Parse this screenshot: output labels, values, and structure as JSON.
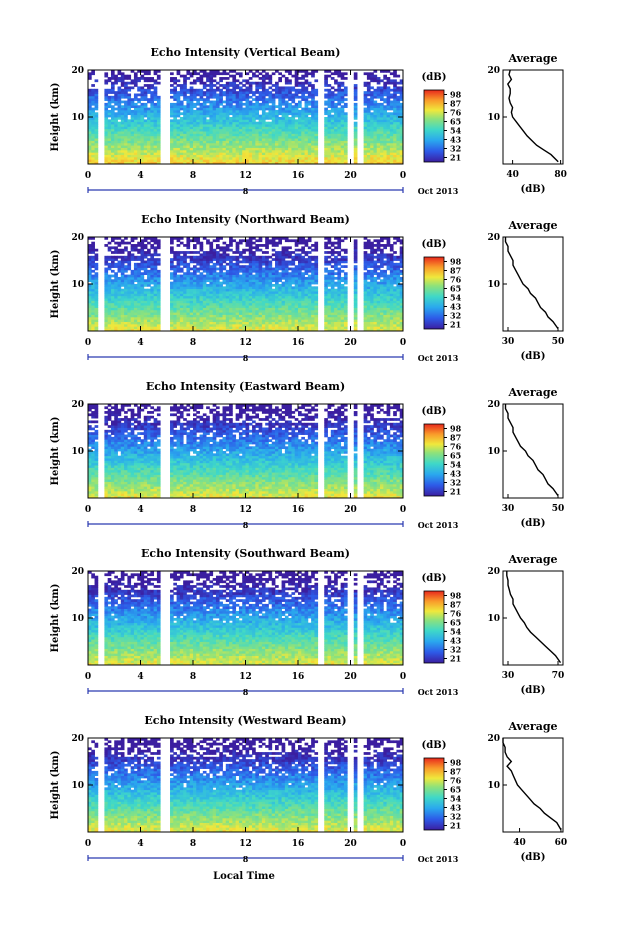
{
  "figure": {
    "xlabel": "Local Time",
    "colorbar_unit": "(dB)",
    "date_label": "Oct 2013",
    "profile_title": "Average",
    "profile_xlabel": "(dB)",
    "colorbar_ticks": [
      "98",
      "87",
      "76",
      "65",
      "54",
      "43",
      "32",
      "21"
    ]
  },
  "chart_data": [
    {
      "type": "heatmap",
      "title": "Echo Intensity (Vertical Beam)",
      "ylabel": "Height (km)",
      "xticks": [
        "0",
        "4",
        "8",
        "12",
        "16",
        "20",
        "0"
      ],
      "yticks": [
        "10",
        "20"
      ],
      "ylim": [
        0,
        20
      ],
      "xlim": [
        0,
        24
      ],
      "mid_date": "8",
      "colorbar_ticks": [
        "98",
        "87",
        "76",
        "65",
        "54",
        "43",
        "32",
        "21"
      ],
      "data_gaps_hours": [
        [
          0.7,
          1.3
        ],
        [
          5.6,
          6.2
        ],
        [
          17.6,
          18.0
        ],
        [
          19.8,
          20.2
        ],
        [
          20.5,
          21.0
        ]
      ],
      "profile": {
        "title": "Average",
        "xlabel": "(dB)",
        "xticks": [
          "40",
          "80"
        ],
        "xlim": [
          32,
          82
        ],
        "yticks": [
          "10",
          "20"
        ],
        "height": [
          0.5,
          2,
          3,
          4,
          5,
          6,
          7,
          8,
          9,
          10,
          11,
          12,
          13,
          14,
          15,
          16,
          17,
          18,
          19,
          20
        ],
        "value": [
          78,
          72,
          66,
          60,
          56,
          52,
          49,
          46,
          43,
          40,
          39,
          40,
          38,
          37,
          38,
          38,
          36,
          39,
          37,
          38
        ]
      }
    },
    {
      "type": "heatmap",
      "title": "Echo Intensity (Northward Beam)",
      "ylabel": "Height (km)",
      "xticks": [
        "0",
        "4",
        "8",
        "12",
        "16",
        "20",
        "0"
      ],
      "yticks": [
        "10",
        "20"
      ],
      "ylim": [
        0,
        20
      ],
      "xlim": [
        0,
        24
      ],
      "mid_date": "8",
      "colorbar_ticks": [
        "98",
        "87",
        "76",
        "65",
        "54",
        "43",
        "32",
        "21"
      ],
      "data_gaps_hours": [
        [
          0.7,
          1.3
        ],
        [
          5.6,
          6.2
        ],
        [
          17.6,
          18.0
        ],
        [
          19.8,
          20.2
        ],
        [
          20.5,
          21.0
        ]
      ],
      "profile": {
        "title": "Average",
        "xlabel": "(dB)",
        "xticks": [
          "30",
          "50"
        ],
        "xlim": [
          28,
          52
        ],
        "yticks": [
          "10",
          "20"
        ],
        "height": [
          0.5,
          2,
          3,
          4,
          5,
          6,
          7,
          8,
          9,
          10,
          11,
          12,
          13,
          14,
          15,
          16,
          17,
          18,
          19,
          20
        ],
        "value": [
          50,
          48,
          46,
          45,
          43,
          42,
          41,
          39,
          38,
          36,
          35,
          34,
          33,
          32,
          32,
          31,
          30,
          30,
          29,
          29
        ]
      }
    },
    {
      "type": "heatmap",
      "title": "Echo Intensity (Eastward Beam)",
      "ylabel": "Height (km)",
      "xticks": [
        "0",
        "4",
        "8",
        "12",
        "16",
        "20",
        "0"
      ],
      "yticks": [
        "10",
        "20"
      ],
      "ylim": [
        0,
        20
      ],
      "xlim": [
        0,
        24
      ],
      "mid_date": "8",
      "colorbar_ticks": [
        "98",
        "87",
        "76",
        "65",
        "54",
        "43",
        "32",
        "21"
      ],
      "data_gaps_hours": [
        [
          0.7,
          1.3
        ],
        [
          5.6,
          6.2
        ],
        [
          17.6,
          18.0
        ],
        [
          19.8,
          20.2
        ],
        [
          20.5,
          21.0
        ]
      ],
      "profile": {
        "title": "Average",
        "xlabel": "(dB)",
        "xticks": [
          "30",
          "50"
        ],
        "xlim": [
          28,
          52
        ],
        "yticks": [
          "10",
          "20"
        ],
        "height": [
          0.5,
          2,
          3,
          4,
          5,
          6,
          7,
          8,
          9,
          10,
          11,
          12,
          13,
          14,
          15,
          16,
          17,
          18,
          19,
          20
        ],
        "value": [
          50,
          48,
          46,
          45,
          44,
          42,
          41,
          40,
          38,
          37,
          35,
          34,
          33,
          32,
          32,
          31,
          30,
          30,
          29,
          29
        ]
      }
    },
    {
      "type": "heatmap",
      "title": "Echo Intensity (Southward Beam)",
      "ylabel": "Height (km)",
      "xticks": [
        "0",
        "4",
        "8",
        "12",
        "16",
        "20",
        "0"
      ],
      "yticks": [
        "10",
        "20"
      ],
      "ylim": [
        0,
        20
      ],
      "xlim": [
        0,
        24
      ],
      "mid_date": "8",
      "colorbar_ticks": [
        "98",
        "87",
        "76",
        "65",
        "54",
        "43",
        "32",
        "21"
      ],
      "data_gaps_hours": [
        [
          0.7,
          1.3
        ],
        [
          5.6,
          6.2
        ],
        [
          17.6,
          18.0
        ],
        [
          19.8,
          20.2
        ],
        [
          20.5,
          21.0
        ]
      ],
      "profile": {
        "title": "Average",
        "xlabel": "(dB)",
        "xticks": [
          "30",
          "70"
        ],
        "xlim": [
          26,
          74
        ],
        "yticks": [
          "10",
          "20"
        ],
        "height": [
          0.5,
          2,
          3,
          4,
          5,
          6,
          7,
          8,
          9,
          10,
          11,
          12,
          13,
          14,
          15,
          16,
          17,
          18,
          19,
          20
        ],
        "value": [
          72,
          68,
          64,
          60,
          56,
          52,
          48,
          45,
          43,
          40,
          38,
          36,
          34,
          34,
          32,
          31,
          30,
          30,
          29,
          29
        ]
      }
    },
    {
      "type": "heatmap",
      "title": "Echo Intensity (Westward Beam)",
      "ylabel": "Height (km)",
      "xticks": [
        "0",
        "4",
        "8",
        "12",
        "16",
        "20",
        "0"
      ],
      "yticks": [
        "10",
        "20"
      ],
      "ylim": [
        0,
        20
      ],
      "xlim": [
        0,
        24
      ],
      "mid_date": "8",
      "colorbar_ticks": [
        "98",
        "87",
        "76",
        "65",
        "54",
        "43",
        "32",
        "21"
      ],
      "data_gaps_hours": [
        [
          0.7,
          1.3
        ],
        [
          5.6,
          6.2
        ],
        [
          17.6,
          18.0
        ],
        [
          19.8,
          20.2
        ],
        [
          20.5,
          21.0
        ]
      ],
      "profile": {
        "title": "Average",
        "xlabel": "(dB)",
        "xticks": [
          "40",
          "60"
        ],
        "xlim": [
          32,
          61
        ],
        "yticks": [
          "10",
          "20"
        ],
        "height": [
          0.5,
          2,
          3,
          4,
          5,
          6,
          7,
          8,
          9,
          10,
          11,
          12,
          13,
          14,
          15,
          16,
          17,
          18,
          19,
          20
        ],
        "value": [
          60,
          58,
          55,
          52,
          50,
          47,
          45,
          43,
          41,
          39,
          38,
          37,
          36,
          34,
          36,
          34,
          33,
          33,
          32,
          32
        ]
      }
    }
  ]
}
